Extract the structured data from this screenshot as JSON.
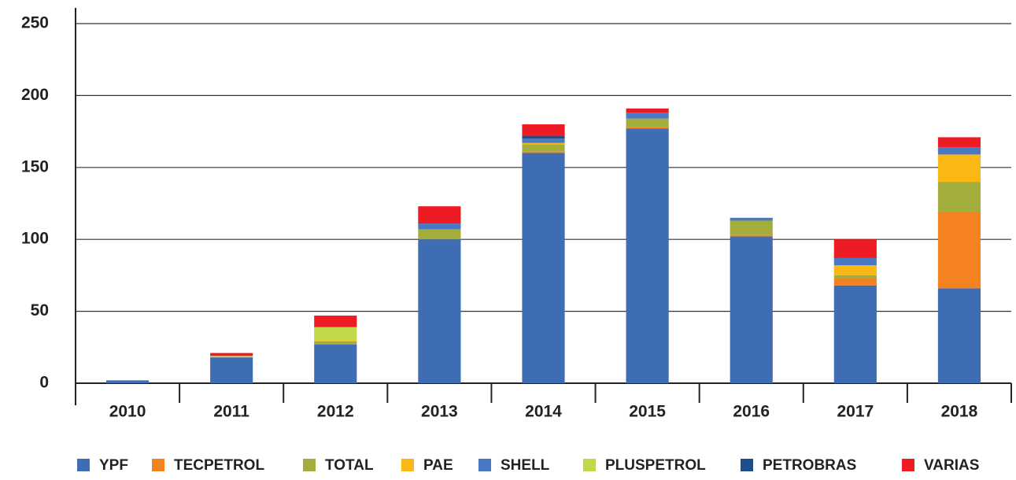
{
  "chart_data": {
    "type": "stacked_bar",
    "categories": [
      "2010",
      "2011",
      "2012",
      "2013",
      "2014",
      "2015",
      "2016",
      "2017",
      "2018"
    ],
    "series": [
      {
        "name": "YPF",
        "color": "#3f6db4",
        "values": [
          2,
          18,
          27,
          100,
          160,
          177,
          102,
          68,
          66
        ]
      },
      {
        "name": "TECPETROL",
        "color": "#f58220",
        "values": [
          0,
          0,
          0,
          0,
          1,
          1,
          1,
          5,
          53
        ]
      },
      {
        "name": "TOTAL",
        "color": "#a3ad3b",
        "values": [
          0,
          0,
          2,
          7,
          5,
          6,
          10,
          2,
          21
        ]
      },
      {
        "name": "PAE",
        "color": "#fbb814",
        "values": [
          0,
          0,
          1,
          0,
          1,
          0,
          0,
          7,
          19
        ]
      },
      {
        "name": "SHELL",
        "color": "#4a78c2",
        "values": [
          0,
          0,
          0,
          4,
          3,
          4,
          2,
          5,
          5
        ]
      },
      {
        "name": "PLUSPETROL",
        "color": "#c0d84a",
        "values": [
          0,
          1,
          9,
          0,
          0,
          0,
          0,
          0,
          0
        ]
      },
      {
        "name": "PETROBRAS",
        "color": "#1b4f8c",
        "values": [
          0,
          0,
          0,
          0,
          2,
          0,
          0,
          0,
          0
        ]
      },
      {
        "name": "VARIAS",
        "color": "#ed1c24",
        "values": [
          0,
          2,
          8,
          12,
          8,
          3,
          0,
          13,
          7
        ]
      }
    ],
    "ylim": [
      0,
      260
    ],
    "yticks": [
      0,
      50,
      100,
      150,
      200,
      250
    ],
    "grid": true,
    "legend": "bottom"
  }
}
